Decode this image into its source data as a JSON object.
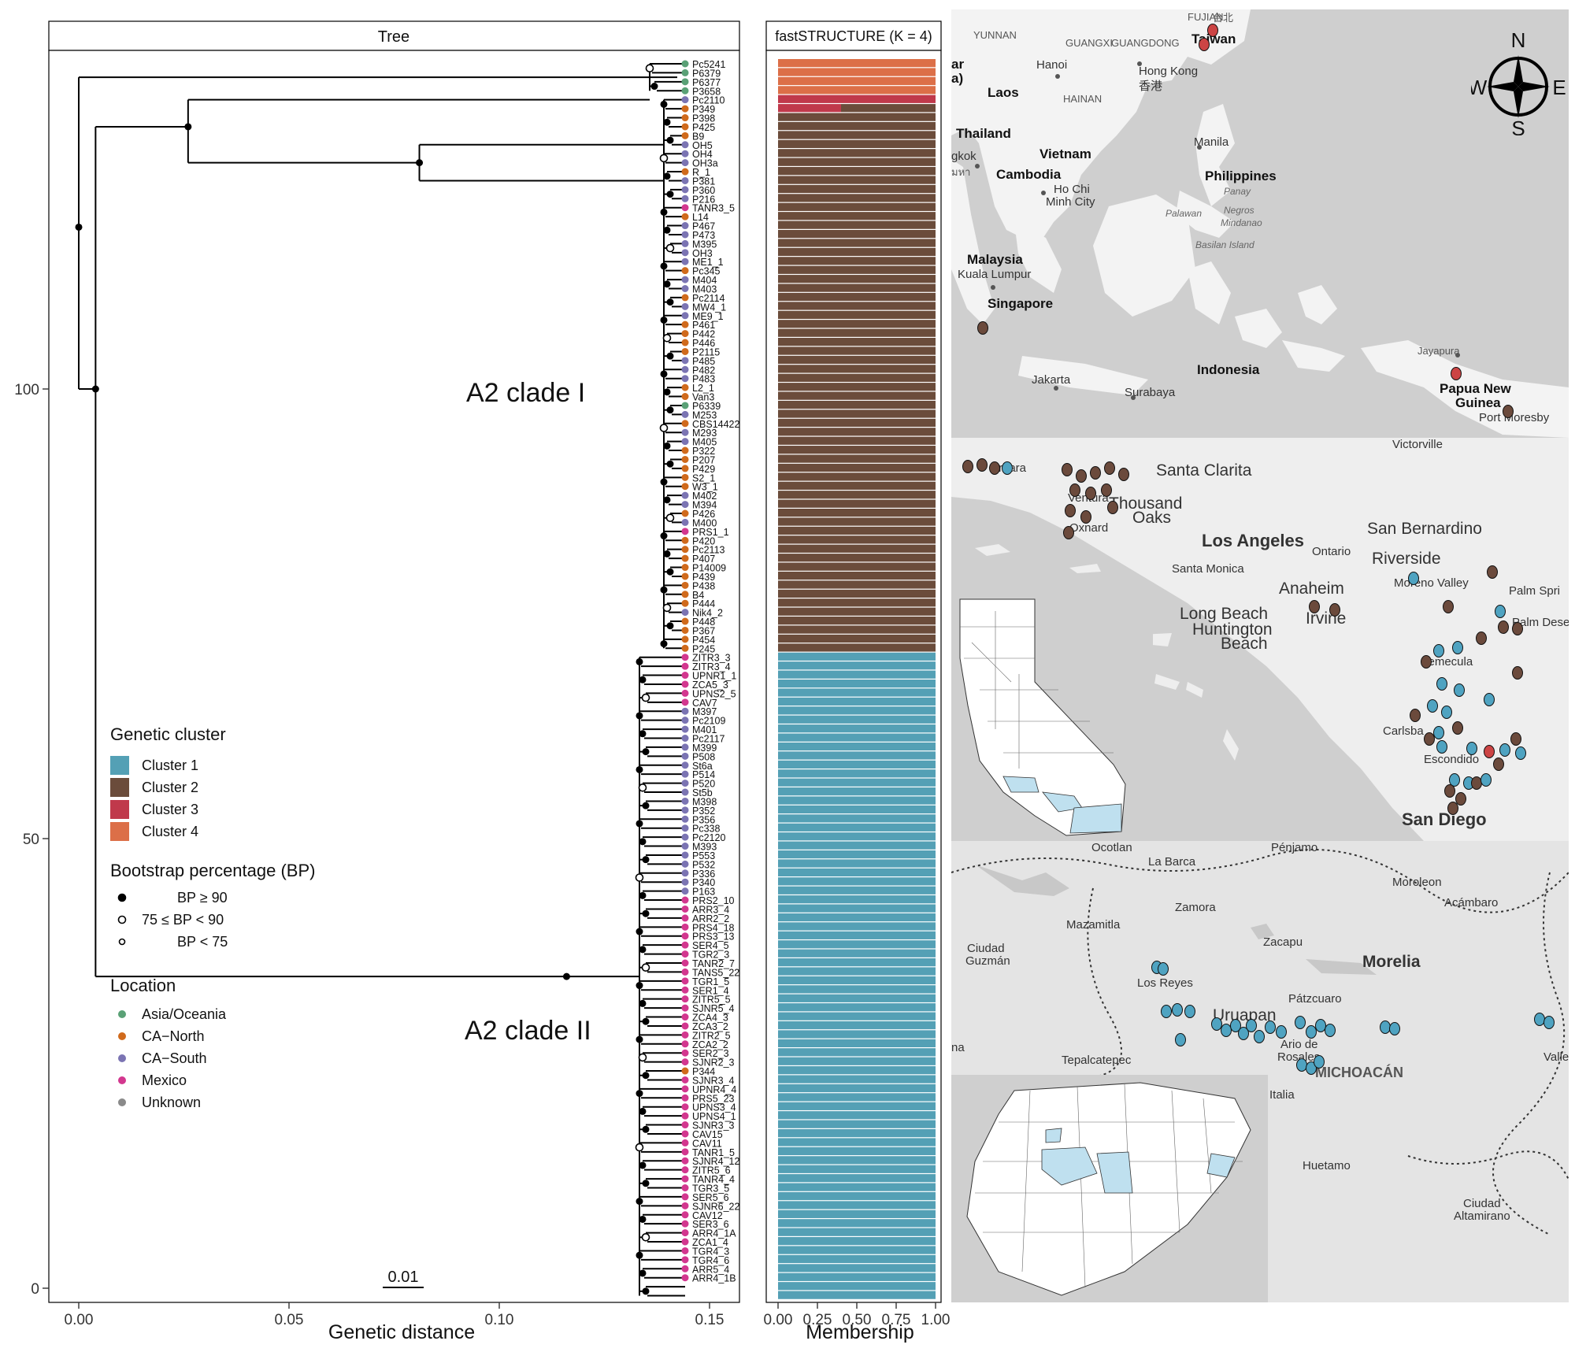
{
  "chart_data": [
    {
      "type": "tree",
      "panel_title": "Tree",
      "xlabel": "Genetic distance",
      "xticks": [
        "0.00",
        "0.05",
        "0.10",
        "0.15"
      ],
      "xlim": [
        -0.007,
        0.157
      ],
      "yticks": [
        "0",
        "50",
        "100"
      ],
      "scale_bar": "0.01",
      "clade_labels": [
        "A2 clade I",
        "A2 clade II"
      ],
      "tips": [
        {
          "name": "Pc5241",
          "loc": "asia"
        },
        {
          "name": "P6379",
          "loc": "asia"
        },
        {
          "name": "P6377",
          "loc": "asia"
        },
        {
          "name": "P3658",
          "loc": "asia"
        },
        {
          "name": "Pc2110",
          "loc": "south"
        },
        {
          "name": "P349",
          "loc": "north"
        },
        {
          "name": "P398",
          "loc": "north"
        },
        {
          "name": "P425",
          "loc": "north"
        },
        {
          "name": "B9",
          "loc": "north"
        },
        {
          "name": "OH5",
          "loc": "south"
        },
        {
          "name": "OH4",
          "loc": "south"
        },
        {
          "name": "OH3a",
          "loc": "south"
        },
        {
          "name": "R_1",
          "loc": "north"
        },
        {
          "name": "P381",
          "loc": "south"
        },
        {
          "name": "P360",
          "loc": "south"
        },
        {
          "name": "P216",
          "loc": "south"
        },
        {
          "name": "TANR3_5",
          "loc": "mexico"
        },
        {
          "name": "L14",
          "loc": "north"
        },
        {
          "name": "P467",
          "loc": "south"
        },
        {
          "name": "P473",
          "loc": "south"
        },
        {
          "name": "M395",
          "loc": "south"
        },
        {
          "name": "OH3",
          "loc": "south"
        },
        {
          "name": "ME1_1",
          "loc": "south"
        },
        {
          "name": "Pc345",
          "loc": "north"
        },
        {
          "name": "M404",
          "loc": "south"
        },
        {
          "name": "M403",
          "loc": "south"
        },
        {
          "name": "Pc2114",
          "loc": "north"
        },
        {
          "name": "MW4_1",
          "loc": "south"
        },
        {
          "name": "ME9_1",
          "loc": "south"
        },
        {
          "name": "P461",
          "loc": "north"
        },
        {
          "name": "P442",
          "loc": "north"
        },
        {
          "name": "P446",
          "loc": "north"
        },
        {
          "name": "P2115",
          "loc": "north"
        },
        {
          "name": "P485",
          "loc": "south"
        },
        {
          "name": "P482",
          "loc": "south"
        },
        {
          "name": "P483",
          "loc": "south"
        },
        {
          "name": "L2_1",
          "loc": "north"
        },
        {
          "name": "Van3",
          "loc": "north"
        },
        {
          "name": "P6339",
          "loc": "asia"
        },
        {
          "name": "M253",
          "loc": "south"
        },
        {
          "name": "CBS14422",
          "loc": "north"
        },
        {
          "name": "M293",
          "loc": "south"
        },
        {
          "name": "M405",
          "loc": "south"
        },
        {
          "name": "P322",
          "loc": "north"
        },
        {
          "name": "P207",
          "loc": "north"
        },
        {
          "name": "P429",
          "loc": "north"
        },
        {
          "name": "S2_1",
          "loc": "north"
        },
        {
          "name": "W3_1",
          "loc": "north"
        },
        {
          "name": "M402",
          "loc": "south"
        },
        {
          "name": "M394",
          "loc": "south"
        },
        {
          "name": "P426",
          "loc": "north"
        },
        {
          "name": "M400",
          "loc": "south"
        },
        {
          "name": "PRS1_1",
          "loc": "mexico"
        },
        {
          "name": "P420",
          "loc": "north"
        },
        {
          "name": "Pc2113",
          "loc": "north"
        },
        {
          "name": "P407",
          "loc": "north"
        },
        {
          "name": "P14009",
          "loc": "north"
        },
        {
          "name": "P439",
          "loc": "north"
        },
        {
          "name": "P438",
          "loc": "north"
        },
        {
          "name": "B4",
          "loc": "north"
        },
        {
          "name": "P444",
          "loc": "north"
        },
        {
          "name": "Nik4_2",
          "loc": "south"
        },
        {
          "name": "P448",
          "loc": "north"
        },
        {
          "name": "P367",
          "loc": "north"
        },
        {
          "name": "P454",
          "loc": "north"
        },
        {
          "name": "P245",
          "loc": "north"
        },
        {
          "name": "ZITR3_3",
          "loc": "mexico"
        },
        {
          "name": "ZITR3_4",
          "loc": "mexico"
        },
        {
          "name": "UPNR1_1",
          "loc": "mexico"
        },
        {
          "name": "ZCA5_3",
          "loc": "mexico"
        },
        {
          "name": "UPNS2_5",
          "loc": "mexico"
        },
        {
          "name": "CAV7",
          "loc": "mexico"
        },
        {
          "name": "M397",
          "loc": "south"
        },
        {
          "name": "Pc2109",
          "loc": "south"
        },
        {
          "name": "M401",
          "loc": "south"
        },
        {
          "name": "Pc2117",
          "loc": "south"
        },
        {
          "name": "M399",
          "loc": "south"
        },
        {
          "name": "P508",
          "loc": "south"
        },
        {
          "name": "St6a",
          "loc": "south"
        },
        {
          "name": "P514",
          "loc": "south"
        },
        {
          "name": "P520",
          "loc": "south"
        },
        {
          "name": "St5b",
          "loc": "south"
        },
        {
          "name": "M398",
          "loc": "south"
        },
        {
          "name": "P352",
          "loc": "south"
        },
        {
          "name": "P356",
          "loc": "south"
        },
        {
          "name": "Pc338",
          "loc": "south"
        },
        {
          "name": "Pc2120",
          "loc": "south"
        },
        {
          "name": "M393",
          "loc": "south"
        },
        {
          "name": "P553",
          "loc": "south"
        },
        {
          "name": "P532",
          "loc": "south"
        },
        {
          "name": "P336",
          "loc": "south"
        },
        {
          "name": "P340",
          "loc": "south"
        },
        {
          "name": "P163",
          "loc": "south"
        },
        {
          "name": "PRS2_10",
          "loc": "mexico"
        },
        {
          "name": "ARR3_4",
          "loc": "mexico"
        },
        {
          "name": "ARR2_2",
          "loc": "mexico"
        },
        {
          "name": "PRS4_18",
          "loc": "mexico"
        },
        {
          "name": "PRS3_13",
          "loc": "mexico"
        },
        {
          "name": "SER4_5",
          "loc": "mexico"
        },
        {
          "name": "TGR2_3",
          "loc": "mexico"
        },
        {
          "name": "TANR2_7",
          "loc": "mexico"
        },
        {
          "name": "TANS5_22",
          "loc": "mexico"
        },
        {
          "name": "TGR1_5",
          "loc": "mexico"
        },
        {
          "name": "SER1_4",
          "loc": "mexico"
        },
        {
          "name": "ZITR5_5",
          "loc": "mexico"
        },
        {
          "name": "SJNR5_4",
          "loc": "mexico"
        },
        {
          "name": "ZCA4_3",
          "loc": "mexico"
        },
        {
          "name": "ZCA3_2",
          "loc": "mexico"
        },
        {
          "name": "ZITR2_5",
          "loc": "mexico"
        },
        {
          "name": "ZCA2_2",
          "loc": "mexico"
        },
        {
          "name": "SER2_3",
          "loc": "mexico"
        },
        {
          "name": "SJNR2_3",
          "loc": "mexico"
        },
        {
          "name": "P344",
          "loc": "north"
        },
        {
          "name": "SJNR3_4",
          "loc": "mexico"
        },
        {
          "name": "UPNR4_4",
          "loc": "mexico"
        },
        {
          "name": "PRS5_23",
          "loc": "mexico"
        },
        {
          "name": "UPNS3_4",
          "loc": "mexico"
        },
        {
          "name": "UPNS4_1",
          "loc": "mexico"
        },
        {
          "name": "SJNR3_3",
          "loc": "mexico"
        },
        {
          "name": "CAV15",
          "loc": "mexico"
        },
        {
          "name": "CAV11",
          "loc": "mexico"
        },
        {
          "name": "TANR1_5",
          "loc": "mexico"
        },
        {
          "name": "SJNR4_12",
          "loc": "mexico"
        },
        {
          "name": "ZITR5_6",
          "loc": "mexico"
        },
        {
          "name": "TANR4_4",
          "loc": "mexico"
        },
        {
          "name": "TGR3_5",
          "loc": "mexico"
        },
        {
          "name": "SER5_6",
          "loc": "mexico"
        },
        {
          "name": "SJNR6_22",
          "loc": "mexico"
        },
        {
          "name": "CAV12",
          "loc": "mexico"
        },
        {
          "name": "SER3_6",
          "loc": "mexico"
        },
        {
          "name": "ARR4_1A",
          "loc": "mexico"
        },
        {
          "name": "ZCA1_4",
          "loc": "mexico"
        },
        {
          "name": "TGR4_3",
          "loc": "mexico"
        },
        {
          "name": "TGR4_6",
          "loc": "mexico"
        },
        {
          "name": "ARR5_4",
          "loc": "mexico"
        },
        {
          "name": "ARR4_1B",
          "loc": "mexico"
        }
      ]
    },
    {
      "type": "bar",
      "panel_title": "fastSTRUCTURE (K = 4)",
      "xlabel": "Membership",
      "xticks": [
        "0.00",
        "0.25",
        "0.50",
        "0.75",
        "1.00"
      ],
      "xlim": [
        0,
        1
      ],
      "n_samples": 138,
      "groups": [
        {
          "cluster": "Cluster 4",
          "count": 4,
          "membership": {
            "Cluster 4": 1.0
          }
        },
        {
          "cluster": "Cluster 3",
          "count": 1,
          "membership": {
            "Cluster 3": 1.0
          }
        },
        {
          "cluster": "Cluster 3/2",
          "count": 1,
          "membership": {
            "Cluster 3": 0.4,
            "Cluster 2": 0.6
          }
        },
        {
          "cluster": "Cluster 2",
          "count": 60,
          "membership": {
            "Cluster 2": 1.0
          }
        },
        {
          "cluster": "Cluster 1",
          "count": 72,
          "membership": {
            "Cluster 1": 1.0
          }
        }
      ]
    }
  ],
  "legend": {
    "cluster_title": "Genetic cluster",
    "clusters": [
      {
        "label": "Cluster 1",
        "color": "#54a0b5"
      },
      {
        "label": "Cluster 2",
        "color": "#6b4c3b"
      },
      {
        "label": "Cluster 3",
        "color": "#c0394b"
      },
      {
        "label": "Cluster 4",
        "color": "#dc6f48"
      }
    ],
    "bp_title": "Bootstrap percentage (BP)",
    "bp": [
      "BP ≥ 90",
      "75 ≤ BP < 90",
      "BP < 75"
    ],
    "loc_title": "Location",
    "locations": [
      {
        "key": "asia",
        "label": "Asia/Oceania",
        "color": "#5aa176"
      },
      {
        "key": "north",
        "label": "CA−North",
        "color": "#d06a1c"
      },
      {
        "key": "south",
        "label": "CA−South",
        "color": "#7b74b3"
      },
      {
        "key": "mexico",
        "label": "Mexico",
        "color": "#d3378f"
      },
      {
        "key": "unknown",
        "label": "Unknown",
        "color": "#8a8a8a"
      }
    ]
  },
  "maps": {
    "asia": {
      "labels": [
        "FUJIAN",
        "台北",
        "YUNNAN",
        "GUANGXI",
        "GUANGDONG",
        "Taiwan",
        "Hanoi",
        "Hong Kong",
        "香港",
        "HAINAN",
        "Laos",
        "Thailand",
        "Vietnam",
        "Manila",
        "Cambodia",
        "Philippines",
        "Ho Chi",
        "Minh City",
        "Panay",
        "Palawan",
        "Negros",
        "Mindanao",
        "Basilan Island",
        "Malaysia",
        "Kuala Lumpur",
        "Singapore",
        "Jayapura",
        "Indonesia",
        "Papua New",
        "Guinea",
        "Jakarta",
        "Surabaya",
        "Port Moresby",
        "ar",
        "a)",
        "gkok",
        "มหา"
      ],
      "compass": [
        "N",
        "E",
        "S",
        "W"
      ]
    },
    "socal": {
      "labels": [
        "Victorville",
        "Santa Clarita",
        "Ventura",
        "Thousand",
        "Oaks",
        "Oxnard",
        "Los Angeles",
        "San Bernardino",
        "Ontario",
        "Riverside",
        "Santa Monica",
        "Moreno Valley",
        "Palm Spri",
        "Anaheim",
        "Long Beach",
        "Irvine",
        "Huntington",
        "Beach",
        "Palm Dese",
        "Temecula",
        "Carlsba",
        "Escondido",
        "San Diego",
        "rbara"
      ]
    },
    "michoacan": {
      "labels": [
        "Ocotlan",
        "Pénjamo",
        "La Barca",
        "Moroleon",
        "Zamora",
        "Acámbaro",
        "Mazamitla",
        "Zacapu",
        "Ciudad",
        "Guzmán",
        "Morelia",
        "Los Reyes",
        "Pátzcuaro",
        "Uruapan",
        "Ario de",
        "Rosales",
        "Tepalcatepec",
        "MICHOACÁN",
        "Italia",
        "Valle",
        "Huetamo",
        "Ciudad",
        "Altamirano",
        "na"
      ]
    }
  }
}
